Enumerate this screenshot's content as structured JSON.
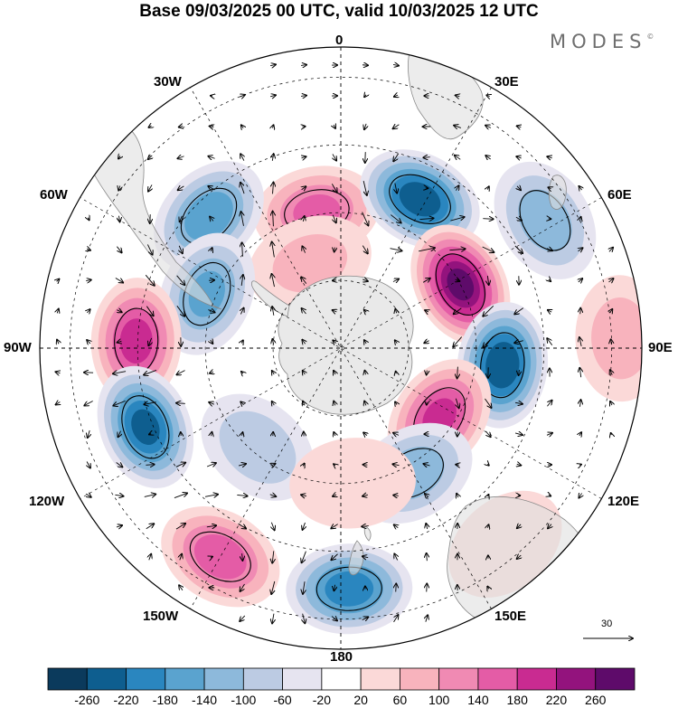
{
  "title": "Base 09/03/2025 00 UTC, valid 10/03/2025 12 UTC",
  "brand": "MODES",
  "brand_mark": "©",
  "longitude_labels": [
    {
      "id": "0",
      "text": "0"
    },
    {
      "id": "30E",
      "text": "30E"
    },
    {
      "id": "60E",
      "text": "60E"
    },
    {
      "id": "90E",
      "text": "90E"
    },
    {
      "id": "120E",
      "text": "120E"
    },
    {
      "id": "150E",
      "text": "150E"
    },
    {
      "id": "180",
      "text": "180"
    },
    {
      "id": "150W",
      "text": "150W"
    },
    {
      "id": "120W",
      "text": "120W"
    },
    {
      "id": "90W",
      "text": "90W"
    },
    {
      "id": "60W",
      "text": "60W"
    },
    {
      "id": "30W",
      "text": "30W"
    }
  ],
  "vector_reference": {
    "value": "30"
  },
  "colorbar": {
    "colors": [
      "#0b3a5c",
      "#0e5e8f",
      "#2a86bf",
      "#5aa3cf",
      "#8db9db",
      "#bccbe3",
      "#e6e4f0",
      "#ffffff",
      "#fbd9d8",
      "#f8b3bd",
      "#f08ab3",
      "#e45ca6",
      "#c92b91",
      "#93137d",
      "#5e0b6a"
    ],
    "labels": [
      "-260",
      "-220",
      "-180",
      "-140",
      "-100",
      "-60",
      "-20",
      "20",
      "60",
      "100",
      "140",
      "180",
      "220",
      "260"
    ]
  },
  "anomalies": [
    {
      "name": "anom-pos-north",
      "lon": -10,
      "colat": 0.46,
      "value": 150
    },
    {
      "name": "anom-pos-north-small",
      "lon": -20,
      "colat": 0.3,
      "value": 70
    },
    {
      "name": "anom-neg-northwest",
      "lon": -45,
      "colat": 0.62,
      "value": -170
    },
    {
      "name": "anom-neg-northeast",
      "lon": 28,
      "colat": 0.56,
      "value": -250
    },
    {
      "name": "anom-neg-east-far",
      "lon": 58,
      "colat": 0.8,
      "value": -130
    },
    {
      "name": "anom-pos-east",
      "lon": 62,
      "colat": 0.45,
      "value": 270
    },
    {
      "name": "anom-neg-east",
      "lon": 96,
      "colat": 0.54,
      "value": -260
    },
    {
      "name": "anom-pos-east-far",
      "lon": 88,
      "colat": 0.93,
      "value": 80
    },
    {
      "name": "anom-neg-west",
      "lon": -68,
      "colat": 0.48,
      "value": -150
    },
    {
      "name": "anom-pos-west",
      "lon": -88,
      "colat": 0.68,
      "value": 200
    },
    {
      "name": "anom-neg-southwest",
      "lon": -112,
      "colat": 0.7,
      "value": -230
    },
    {
      "name": "anom-pos-southeast",
      "lon": 125,
      "colat": 0.4,
      "value": 190
    },
    {
      "name": "anom-neg-south-east",
      "lon": 150,
      "colat": 0.48,
      "value": -130
    },
    {
      "name": "anom-neg-south",
      "lon": 178,
      "colat": 0.8,
      "value": -210
    },
    {
      "name": "anom-pos-south",
      "lon": -150,
      "colat": 0.8,
      "value": 170
    },
    {
      "name": "anom-neg-south-small",
      "lon": -140,
      "colat": 0.43,
      "value": -90
    },
    {
      "name": "anom-pos-south-small",
      "lon": 175,
      "colat": 0.45,
      "value": 50
    },
    {
      "name": "anom-pos-east-land",
      "lon": 140,
      "colat": 0.85,
      "value": 50
    }
  ]
}
